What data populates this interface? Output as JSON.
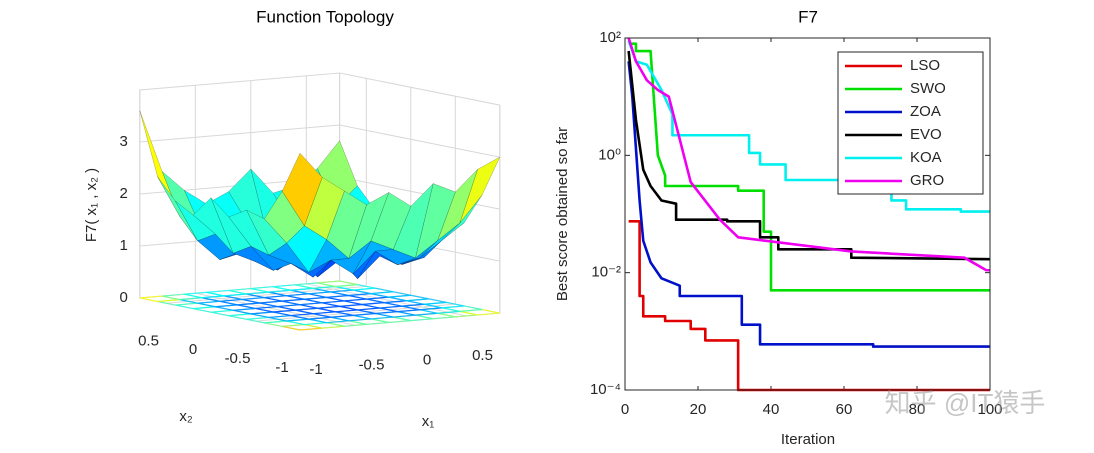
{
  "chart_data": [
    {
      "type": "surface",
      "title": "Function Topology",
      "xlabel": "x₁",
      "ylabel": "x₂",
      "zlabel": "F7( x₁ , x₂ )",
      "x": [
        -1,
        -0.8,
        -0.6,
        -0.4,
        -0.2,
        0,
        0.2,
        0.4,
        0.6,
        0.8
      ],
      "y": [
        -1,
        -0.8,
        -0.6,
        -0.4,
        -0.2,
        0,
        0.2,
        0.4,
        0.6,
        0.8
      ],
      "z": [
        [
          3.4,
          2.9,
          2.6,
          2.3,
          2.5,
          2.2,
          2.6,
          2.4,
          2.8,
          3.0
        ],
        [
          2.6,
          1.9,
          1.6,
          1.2,
          1.5,
          1.3,
          1.1,
          1.4,
          1.7,
          2.2
        ],
        [
          2.0,
          1.5,
          0.9,
          1.1,
          0.8,
          1.2,
          0.9,
          1.0,
          1.3,
          1.6
        ],
        [
          2.1,
          1.2,
          1.0,
          0.7,
          1.1,
          0.6,
          1.0,
          0.8,
          0.9,
          1.7
        ],
        [
          1.9,
          1.3,
          0.8,
          1.0,
          0.6,
          0.9,
          0.7,
          1.1,
          1.0,
          1.5
        ],
        [
          2.2,
          1.1,
          0.9,
          0.7,
          1.2,
          0.8,
          1.0,
          0.6,
          1.1,
          1.4
        ],
        [
          1.8,
          1.4,
          1.0,
          1.2,
          0.7,
          1.1,
          0.8,
          1.0,
          0.9,
          1.6
        ],
        [
          2.0,
          1.2,
          0.8,
          0.9,
          1.0,
          0.7,
          1.2,
          0.9,
          1.2,
          1.5
        ],
        [
          2.4,
          1.6,
          1.3,
          1.1,
          1.4,
          1.0,
          1.3,
          1.2,
          1.5,
          1.9
        ],
        [
          3.6,
          2.4,
          2.0,
          1.7,
          1.9,
          2.3,
          1.8,
          1.9,
          2.2,
          2.7
        ]
      ],
      "xlim": [
        -1,
        0.8
      ],
      "ylim": [
        -1,
        0.8
      ],
      "zlim": [
        0,
        4
      ],
      "xticks": [
        -1,
        -0.5,
        0,
        0.5
      ],
      "yticks": [
        -1,
        -0.5,
        0,
        0.5
      ],
      "zticks": [
        0,
        1,
        2,
        3
      ],
      "colormap": "jet",
      "contour": true,
      "grid": true
    },
    {
      "type": "line",
      "title": "F7",
      "xlabel": "Iteration",
      "ylabel": "Best score obtained so far",
      "yscale": "log",
      "xlim": [
        0,
        100
      ],
      "ylim": [
        0.0001,
        100
      ],
      "xticks": [
        0,
        20,
        40,
        60,
        80,
        100
      ],
      "yticks": [
        {
          "value": 0.0001,
          "label": "10⁻⁴"
        },
        {
          "value": 0.01,
          "label": "10⁻²"
        },
        {
          "value": 1,
          "label": "10⁰"
        },
        {
          "value": 100,
          "label": "10²"
        }
      ],
      "legend": "top-right",
      "watermark": "知乎 @IT猿手",
      "series": [
        {
          "name": "LSO",
          "color": "#e00000",
          "x": [
            1,
            4,
            4,
            5,
            5,
            11,
            11,
            18,
            18,
            22,
            22,
            31,
            31,
            100
          ],
          "values": [
            0.075,
            0.075,
            0.004,
            0.004,
            0.0018,
            0.0018,
            0.0015,
            0.0015,
            0.0011,
            0.0011,
            0.0007,
            0.0007,
            0.0001,
            0.0001
          ]
        },
        {
          "name": "SWO",
          "color": "#00e000",
          "x": [
            1,
            3,
            3,
            7,
            9,
            11,
            11,
            31,
            31,
            38,
            38,
            40,
            40,
            100
          ],
          "values": [
            80,
            80,
            60,
            60,
            1.0,
            0.45,
            0.3,
            0.3,
            0.25,
            0.25,
            0.05,
            0.05,
            0.005,
            0.005
          ]
        },
        {
          "name": "ZOA",
          "color": "#0010c8",
          "x": [
            1,
            2,
            4,
            5,
            7,
            10,
            15,
            15,
            32,
            32,
            37,
            37,
            68,
            68,
            100
          ],
          "values": [
            40,
            10,
            0.17,
            0.035,
            0.015,
            0.008,
            0.006,
            0.004,
            0.004,
            0.0013,
            0.0013,
            0.0006,
            0.0006,
            0.00055,
            0.00055
          ]
        },
        {
          "name": "EVO",
          "color": "#000000",
          "x": [
            1,
            3,
            5,
            7,
            10,
            14,
            14,
            28,
            28,
            37,
            37,
            42,
            42,
            62,
            62,
            100
          ],
          "values": [
            60,
            4,
            0.57,
            0.3,
            0.17,
            0.15,
            0.08,
            0.08,
            0.075,
            0.075,
            0.04,
            0.04,
            0.025,
            0.025,
            0.018,
            0.017
          ]
        },
        {
          "name": "KOA",
          "color": "#00f0f0",
          "x": [
            1,
            3,
            6,
            10,
            13,
            13,
            34,
            34,
            37,
            37,
            44,
            44,
            59,
            59,
            73,
            73,
            77,
            77,
            92,
            92,
            100
          ],
          "values": [
            90,
            40,
            35,
            13,
            5,
            2.2,
            2.2,
            1.1,
            1.1,
            0.7,
            0.7,
            0.38,
            0.38,
            0.3,
            0.3,
            0.17,
            0.17,
            0.12,
            0.12,
            0.11,
            0.11
          ]
        },
        {
          "name": "GRO",
          "color": "#f000f0",
          "x": [
            1,
            3,
            6,
            9,
            12,
            12,
            18,
            18,
            26,
            26,
            31,
            31,
            62,
            62,
            93,
            93,
            99,
            100
          ],
          "values": [
            100,
            40,
            19,
            13,
            10,
            10,
            0.35,
            0.35,
            0.08,
            0.08,
            0.04,
            0.04,
            0.023,
            0.023,
            0.018,
            0.018,
            0.011,
            0.011
          ]
        }
      ]
    }
  ]
}
